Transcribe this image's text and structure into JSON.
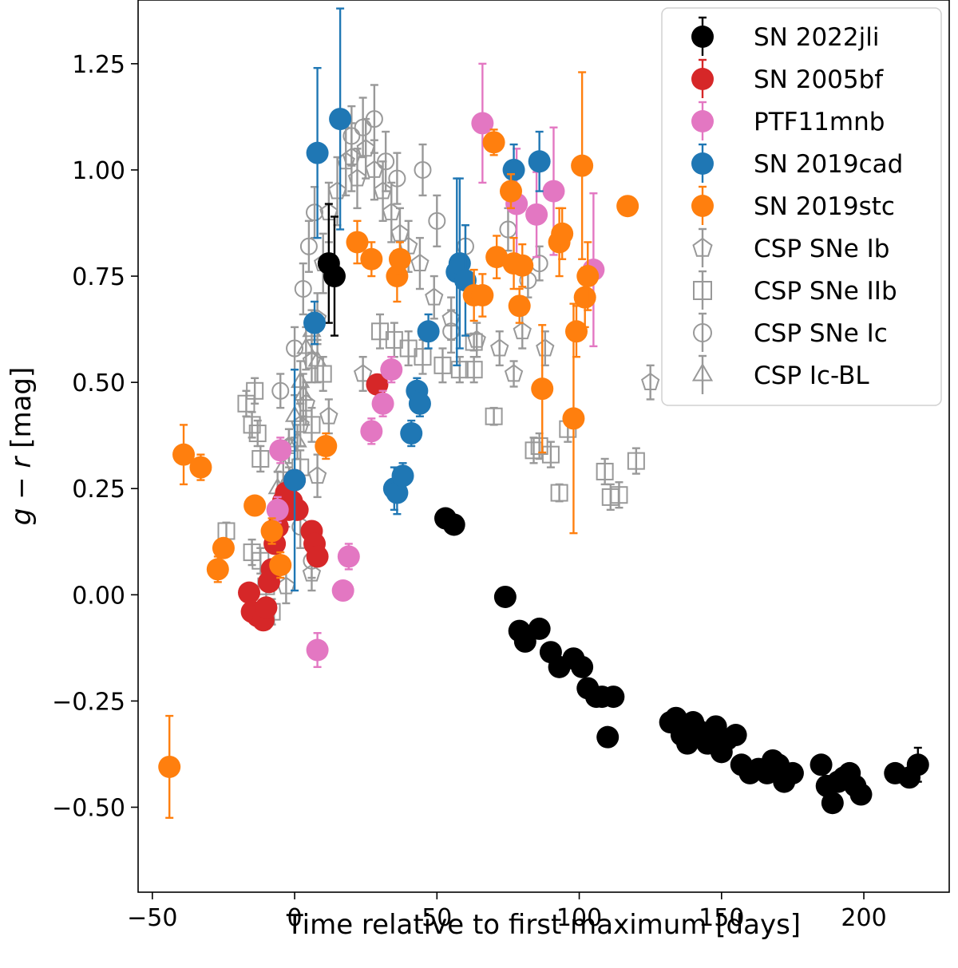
{
  "chart_data": {
    "type": "scatter",
    "title": "",
    "xlabel": "Time relative to first maximum [days]",
    "ylabel_var1": "g",
    "ylabel_op": " − ",
    "ylabel_var2": "r",
    "ylabel_unit": " [mag]",
    "xlim": [
      -55,
      230
    ],
    "ylim": [
      -0.7,
      1.4
    ],
    "x_ticks": [
      -50,
      0,
      50,
      100,
      150,
      200
    ],
    "x_tick_labels": [
      "−50",
      "0",
      "50",
      "100",
      "150",
      "200"
    ],
    "y_ticks": [
      -0.5,
      -0.25,
      0.0,
      0.25,
      0.5,
      0.75,
      1.0,
      1.25
    ],
    "y_tick_labels": [
      "−0.50",
      "−0.25",
      "0.00",
      "0.25",
      "0.50",
      "0.75",
      "1.00",
      "1.25"
    ],
    "legend_position": "upper-right",
    "series": [
      {
        "name": "SN 2022jli",
        "marker": "circle",
        "filled": true,
        "color": "#000000",
        "points": [
          [
            12,
            0.78,
            0.14
          ],
          [
            14,
            0.75,
            0.14
          ],
          [
            53,
            0.18,
            0
          ],
          [
            56,
            0.165,
            0
          ],
          [
            74,
            -0.005,
            0
          ],
          [
            79,
            -0.085,
            0
          ],
          [
            81,
            -0.11,
            0
          ],
          [
            86,
            -0.08,
            0
          ],
          [
            90,
            -0.135,
            0
          ],
          [
            93,
            -0.17,
            0
          ],
          [
            98,
            -0.15,
            0
          ],
          [
            101,
            -0.17,
            0
          ],
          [
            103,
            -0.22,
            0
          ],
          [
            106,
            -0.24,
            0
          ],
          [
            108,
            -0.24,
            0
          ],
          [
            110,
            -0.335,
            0
          ],
          [
            112,
            -0.24,
            0
          ],
          [
            132,
            -0.3,
            0
          ],
          [
            134,
            -0.29,
            0
          ],
          [
            136,
            -0.33,
            0
          ],
          [
            138,
            -0.35,
            0
          ],
          [
            140,
            -0.3,
            0
          ],
          [
            142,
            -0.32,
            0
          ],
          [
            145,
            -0.35,
            0
          ],
          [
            148,
            -0.31,
            0
          ],
          [
            150,
            -0.37,
            0
          ],
          [
            152,
            -0.34,
            0
          ],
          [
            155,
            -0.33,
            0
          ],
          [
            157,
            -0.4,
            0
          ],
          [
            160,
            -0.42,
            0
          ],
          [
            163,
            -0.41,
            0
          ],
          [
            166,
            -0.42,
            0
          ],
          [
            168,
            -0.39,
            0
          ],
          [
            170,
            -0.4,
            0
          ],
          [
            172,
            -0.44,
            0
          ],
          [
            175,
            -0.42,
            0
          ],
          [
            185,
            -0.4,
            0
          ],
          [
            187,
            -0.45,
            0
          ],
          [
            189,
            -0.49,
            0
          ],
          [
            191,
            -0.44,
            0
          ],
          [
            193,
            -0.43,
            0
          ],
          [
            195,
            -0.42,
            0
          ],
          [
            197,
            -0.45,
            0
          ],
          [
            199,
            -0.47,
            0
          ],
          [
            211,
            -0.42,
            0
          ],
          [
            216,
            -0.43,
            0
          ],
          [
            219,
            -0.4,
            0.04
          ]
        ]
      },
      {
        "name": "SN 2005bf",
        "marker": "circle",
        "filled": true,
        "color": "#d62728",
        "points": [
          [
            -16,
            0.005,
            0
          ],
          [
            -15,
            -0.04,
            0
          ],
          [
            -13,
            -0.05,
            0
          ],
          [
            -11,
            -0.06,
            0
          ],
          [
            -10,
            -0.03,
            0
          ],
          [
            -9,
            0.03,
            0
          ],
          [
            -8,
            0.06,
            0
          ],
          [
            -7,
            0.12,
            0
          ],
          [
            -6,
            0.16,
            0
          ],
          [
            -5,
            0.2,
            0
          ],
          [
            -4,
            0.22,
            0
          ],
          [
            -3,
            0.24,
            0
          ],
          [
            -2,
            0.2,
            0
          ],
          [
            -1,
            0.22,
            0
          ],
          [
            0,
            0.27,
            0
          ],
          [
            1,
            0.2,
            0
          ],
          [
            6,
            0.15,
            0
          ],
          [
            7,
            0.12,
            0
          ],
          [
            8,
            0.09,
            0
          ],
          [
            29,
            0.495,
            0
          ]
        ]
      },
      {
        "name": "PTF11mnb",
        "marker": "circle",
        "filled": true,
        "color": "#e377c2",
        "points": [
          [
            -5,
            0.34,
            0.03
          ],
          [
            -6,
            0.2,
            0.03
          ],
          [
            8,
            -0.13,
            0.04
          ],
          [
            17,
            0.01,
            0
          ],
          [
            19,
            0.09,
            0.03
          ],
          [
            27,
            0.385,
            0.03
          ],
          [
            31,
            0.45,
            0.03
          ],
          [
            34,
            0.53,
            0.03
          ],
          [
            66,
            1.11,
            0.14
          ],
          [
            78,
            0.92,
            0.13
          ],
          [
            85,
            0.895,
            0.1
          ],
          [
            91,
            0.95,
            0.15
          ],
          [
            105,
            0.765,
            0.18
          ]
        ]
      },
      {
        "name": "SN 2019cad",
        "marker": "circle",
        "filled": true,
        "color": "#1f77b4",
        "points": [
          [
            0,
            0.27,
            0.26
          ],
          [
            7,
            0.64,
            0.05
          ],
          [
            8,
            1.04,
            0.2
          ],
          [
            16,
            1.12,
            0.26
          ],
          [
            35,
            0.25,
            0.05
          ],
          [
            36,
            0.24,
            0.05
          ],
          [
            38,
            0.28,
            0.03
          ],
          [
            41,
            0.38,
            0.03
          ],
          [
            43,
            0.48,
            0.03
          ],
          [
            44,
            0.45,
            0.03
          ],
          [
            47,
            0.62,
            0.04
          ],
          [
            57,
            0.76,
            0.22
          ],
          [
            58,
            0.78,
            0.2
          ],
          [
            60,
            0.74,
            0.13
          ],
          [
            77,
            1.0,
            0.06
          ],
          [
            86,
            1.02,
            0.07
          ]
        ]
      },
      {
        "name": "SN 2019stc",
        "marker": "circle",
        "filled": true,
        "color": "#ff7f0e",
        "points": [
          [
            -44,
            -0.405,
            0.12
          ],
          [
            -39,
            0.33,
            0.07
          ],
          [
            -33,
            0.3,
            0.03
          ],
          [
            -27,
            0.06,
            0.03
          ],
          [
            -25,
            0.11,
            0.02
          ],
          [
            -14,
            0.21,
            0.02
          ],
          [
            -8,
            0.15,
            0.03
          ],
          [
            -5,
            0.07,
            0.03
          ],
          [
            11,
            0.35,
            0.03
          ],
          [
            22,
            0.83,
            0.05
          ],
          [
            27,
            0.79,
            0.04
          ],
          [
            36,
            0.75,
            0.06
          ],
          [
            37,
            0.79,
            0.04
          ],
          [
            63,
            0.705,
            0.06
          ],
          [
            66,
            0.705,
            0.05
          ],
          [
            70,
            1.065,
            0.03
          ],
          [
            71,
            0.795,
            0.05
          ],
          [
            76,
            0.95,
            0.04
          ],
          [
            77,
            0.78,
            0.06
          ],
          [
            79,
            0.68,
            0.04
          ],
          [
            80,
            0.775,
            0.05
          ],
          [
            87,
            0.485,
            0.15
          ],
          [
            93,
            0.83,
            0.08
          ],
          [
            94,
            0.85,
            0.06
          ],
          [
            98,
            0.415,
            0.27
          ],
          [
            99,
            0.62,
            0.06
          ],
          [
            101,
            1.01,
            0.22
          ],
          [
            102,
            0.7,
            0.07
          ],
          [
            103,
            0.75,
            0.08
          ],
          [
            117,
            0.915,
            0.02
          ]
        ]
      },
      {
        "name": "CSP SNe Ib",
        "marker": "pentagon",
        "filled": false,
        "color": "#999999",
        "points": [
          [
            -2,
            0.35,
            0.04
          ],
          [
            2,
            0.4,
            0.05
          ],
          [
            4,
            0.45,
            0.05
          ],
          [
            6,
            0.55,
            0.05
          ],
          [
            8,
            0.65,
            0.06
          ],
          [
            10,
            0.78,
            0.07
          ],
          [
            12,
            0.9,
            0.07
          ],
          [
            15,
            0.95,
            0.08
          ],
          [
            18,
            1.02,
            0.08
          ],
          [
            20,
            1.03,
            0.08
          ],
          [
            22,
            0.98,
            0.07
          ],
          [
            25,
            1.05,
            0.07
          ],
          [
            28,
            1.0,
            0.07
          ],
          [
            31,
            0.95,
            0.07
          ],
          [
            34,
            0.9,
            0.07
          ],
          [
            37,
            0.85,
            0.06
          ],
          [
            40,
            0.82,
            0.06
          ],
          [
            44,
            0.78,
            0.06
          ],
          [
            49,
            0.7,
            0.05
          ],
          [
            55,
            0.65,
            0.05
          ],
          [
            64,
            0.6,
            0.04
          ],
          [
            72,
            0.58,
            0.04
          ],
          [
            80,
            0.62,
            0.04
          ],
          [
            88,
            0.58,
            0.04
          ],
          [
            77,
            0.52,
            0.03
          ],
          [
            24,
            0.52,
            0.04
          ],
          [
            -3,
            0.02,
            0.04
          ],
          [
            8,
            0.28,
            0.05
          ],
          [
            12,
            0.42,
            0.04
          ],
          [
            125,
            0.5,
            0.04
          ],
          [
            6,
            0.05,
            0.04
          ]
        ]
      },
      {
        "name": "CSP SNe IIb",
        "marker": "square",
        "filled": false,
        "color": "#999999",
        "points": [
          [
            -17,
            0.45,
            0.03
          ],
          [
            -14,
            0.48,
            0.03
          ],
          [
            -15,
            0.4,
            0.03
          ],
          [
            -13,
            0.38,
            0.03
          ],
          [
            -12,
            0.32,
            0.03
          ],
          [
            -24,
            0.15,
            0.02
          ],
          [
            -15,
            0.1,
            0.03
          ],
          [
            -12,
            0.08,
            0.03
          ],
          [
            -10,
            0.02,
            0.03
          ],
          [
            -10,
            -0.05,
            0.03
          ],
          [
            -8,
            -0.04,
            0.03
          ],
          [
            2,
            0.3,
            0.04
          ],
          [
            6,
            0.4,
            0.04
          ],
          [
            10,
            0.52,
            0.04
          ],
          [
            30,
            0.62,
            0.04
          ],
          [
            35,
            0.6,
            0.04
          ],
          [
            40,
            0.58,
            0.04
          ],
          [
            45,
            0.56,
            0.04
          ],
          [
            52,
            0.54,
            0.04
          ],
          [
            58,
            0.53,
            0.03
          ],
          [
            63,
            0.53,
            0.03
          ],
          [
            70,
            0.42,
            0.02
          ],
          [
            84,
            0.34,
            0.03
          ],
          [
            86,
            0.35,
            0.03
          ],
          [
            90,
            0.33,
            0.03
          ],
          [
            93,
            0.24,
            0.02
          ],
          [
            96,
            0.39,
            0.03
          ],
          [
            109,
            0.29,
            0.03
          ],
          [
            111,
            0.23,
            0.03
          ],
          [
            114,
            0.235,
            0.03
          ],
          [
            120,
            0.315,
            0.03
          ],
          [
            63,
            0.595,
            0.02
          ]
        ]
      },
      {
        "name": "CSP SNe Ic",
        "marker": "circle",
        "filled": false,
        "color": "#999999",
        "points": [
          [
            -5,
            0.48,
            0.04
          ],
          [
            0,
            0.58,
            0.05
          ],
          [
            3,
            0.72,
            0.06
          ],
          [
            5,
            0.82,
            0.06
          ],
          [
            7,
            0.9,
            0.06
          ],
          [
            20,
            1.08,
            0.07
          ],
          [
            24,
            1.1,
            0.07
          ],
          [
            28,
            1.12,
            0.08
          ],
          [
            32,
            1.02,
            0.07
          ],
          [
            36,
            0.98,
            0.06
          ],
          [
            45,
            1.0,
            0.06
          ],
          [
            50,
            0.88,
            0.06
          ],
          [
            55,
            0.62,
            0.05
          ],
          [
            60,
            0.82,
            0.05
          ],
          [
            75,
            0.86,
            0.05
          ],
          [
            82,
            0.74,
            0.04
          ],
          [
            86,
            0.78,
            0.04
          ],
          [
            -4,
            0.22,
            0.04
          ],
          [
            -2,
            0.26,
            0.04
          ],
          [
            2,
            0.16,
            0.05
          ],
          [
            6,
            0.08,
            0.04
          ]
        ]
      },
      {
        "name": "CSP Ic-BL",
        "marker": "triangle",
        "filled": false,
        "color": "#999999",
        "points": [
          [
            -6,
            0.25,
            0.04
          ],
          [
            -4,
            0.3,
            0.04
          ],
          [
            -2,
            0.35,
            0.04
          ],
          [
            0,
            0.42,
            0.05
          ],
          [
            2,
            0.5,
            0.05
          ],
          [
            4,
            0.58,
            0.05
          ],
          [
            6,
            0.62,
            0.05
          ],
          [
            8,
            0.55,
            0.05
          ],
          [
            3,
            0.47,
            0.05
          ],
          [
            1,
            0.36,
            0.04
          ],
          [
            -3,
            0.2,
            0.04
          ]
        ]
      }
    ]
  }
}
